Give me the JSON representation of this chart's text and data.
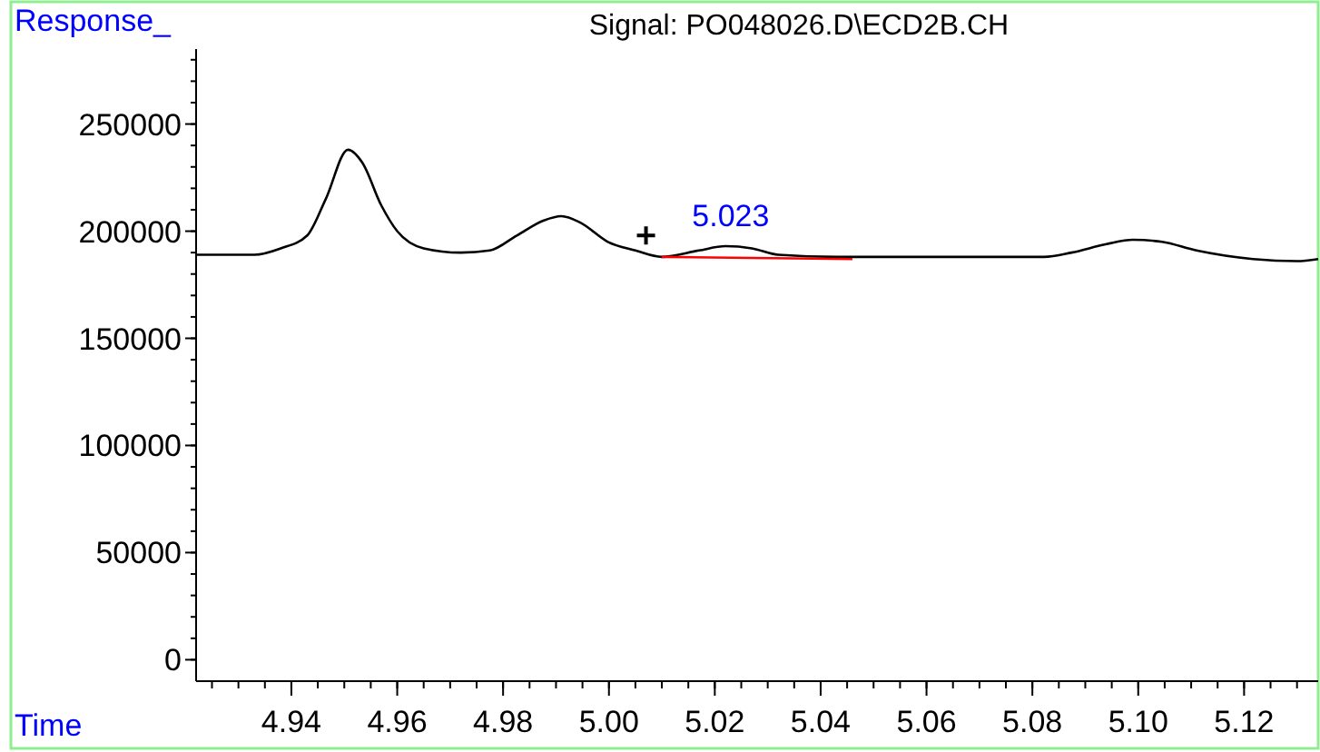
{
  "chart_data": {
    "type": "line",
    "title": "Signal: PO048026.D\\ECD2B.CH",
    "xlabel": "Time",
    "ylabel": "Response_",
    "xlim": [
      4.922,
      5.134
    ],
    "ylim": [
      -10000,
      285000
    ],
    "xticks": [
      4.94,
      4.96,
      4.98,
      {
        "value": 5.0,
        "label": "5.00"
      },
      5.02,
      5.04,
      5.06,
      5.08,
      {
        "value": 5.1,
        "label": "5.10"
      },
      5.12
    ],
    "yticks": [
      0,
      50000,
      100000,
      150000,
      200000,
      250000
    ],
    "grid": false,
    "annotations": [
      {
        "text": "5.023",
        "x": 5.023,
        "y": 194000
      }
    ],
    "series": [
      {
        "color": "#000000",
        "x": [
          4.922,
          4.933,
          4.938,
          4.943,
          4.9465,
          4.9507,
          4.9534,
          4.957,
          4.96,
          4.965,
          4.972,
          4.9775,
          4.9826,
          4.9877,
          4.991,
          4.9946,
          4.9998,
          5.005,
          5.01,
          5.017,
          5.022,
          5.027,
          5.032,
          5.043,
          5.05,
          5.0677,
          5.0822,
          5.0874,
          5.094,
          5.099,
          5.1045,
          5.111,
          5.1217,
          5.13,
          5.134
        ],
        "values": [
          189000,
          189000,
          192000,
          198000,
          215000,
          238000,
          232000,
          212000,
          200000,
          192000,
          190000,
          191000,
          198000,
          205000,
          207000,
          204000,
          195000,
          191000,
          188000,
          191000,
          193000,
          192000,
          189000,
          188000,
          188000,
          188000,
          188000,
          190000,
          194000,
          196000,
          195000,
          191000,
          187000,
          186000,
          187000
        ]
      },
      {
        "color": "#ff0000",
        "x": [
          5.01,
          5.046
        ],
        "values": [
          188000,
          187000
        ]
      },
      {
        "type": "scatter",
        "marker": "cross",
        "color": "#000000",
        "x": [
          5.007
        ],
        "values": [
          198000
        ]
      }
    ]
  }
}
